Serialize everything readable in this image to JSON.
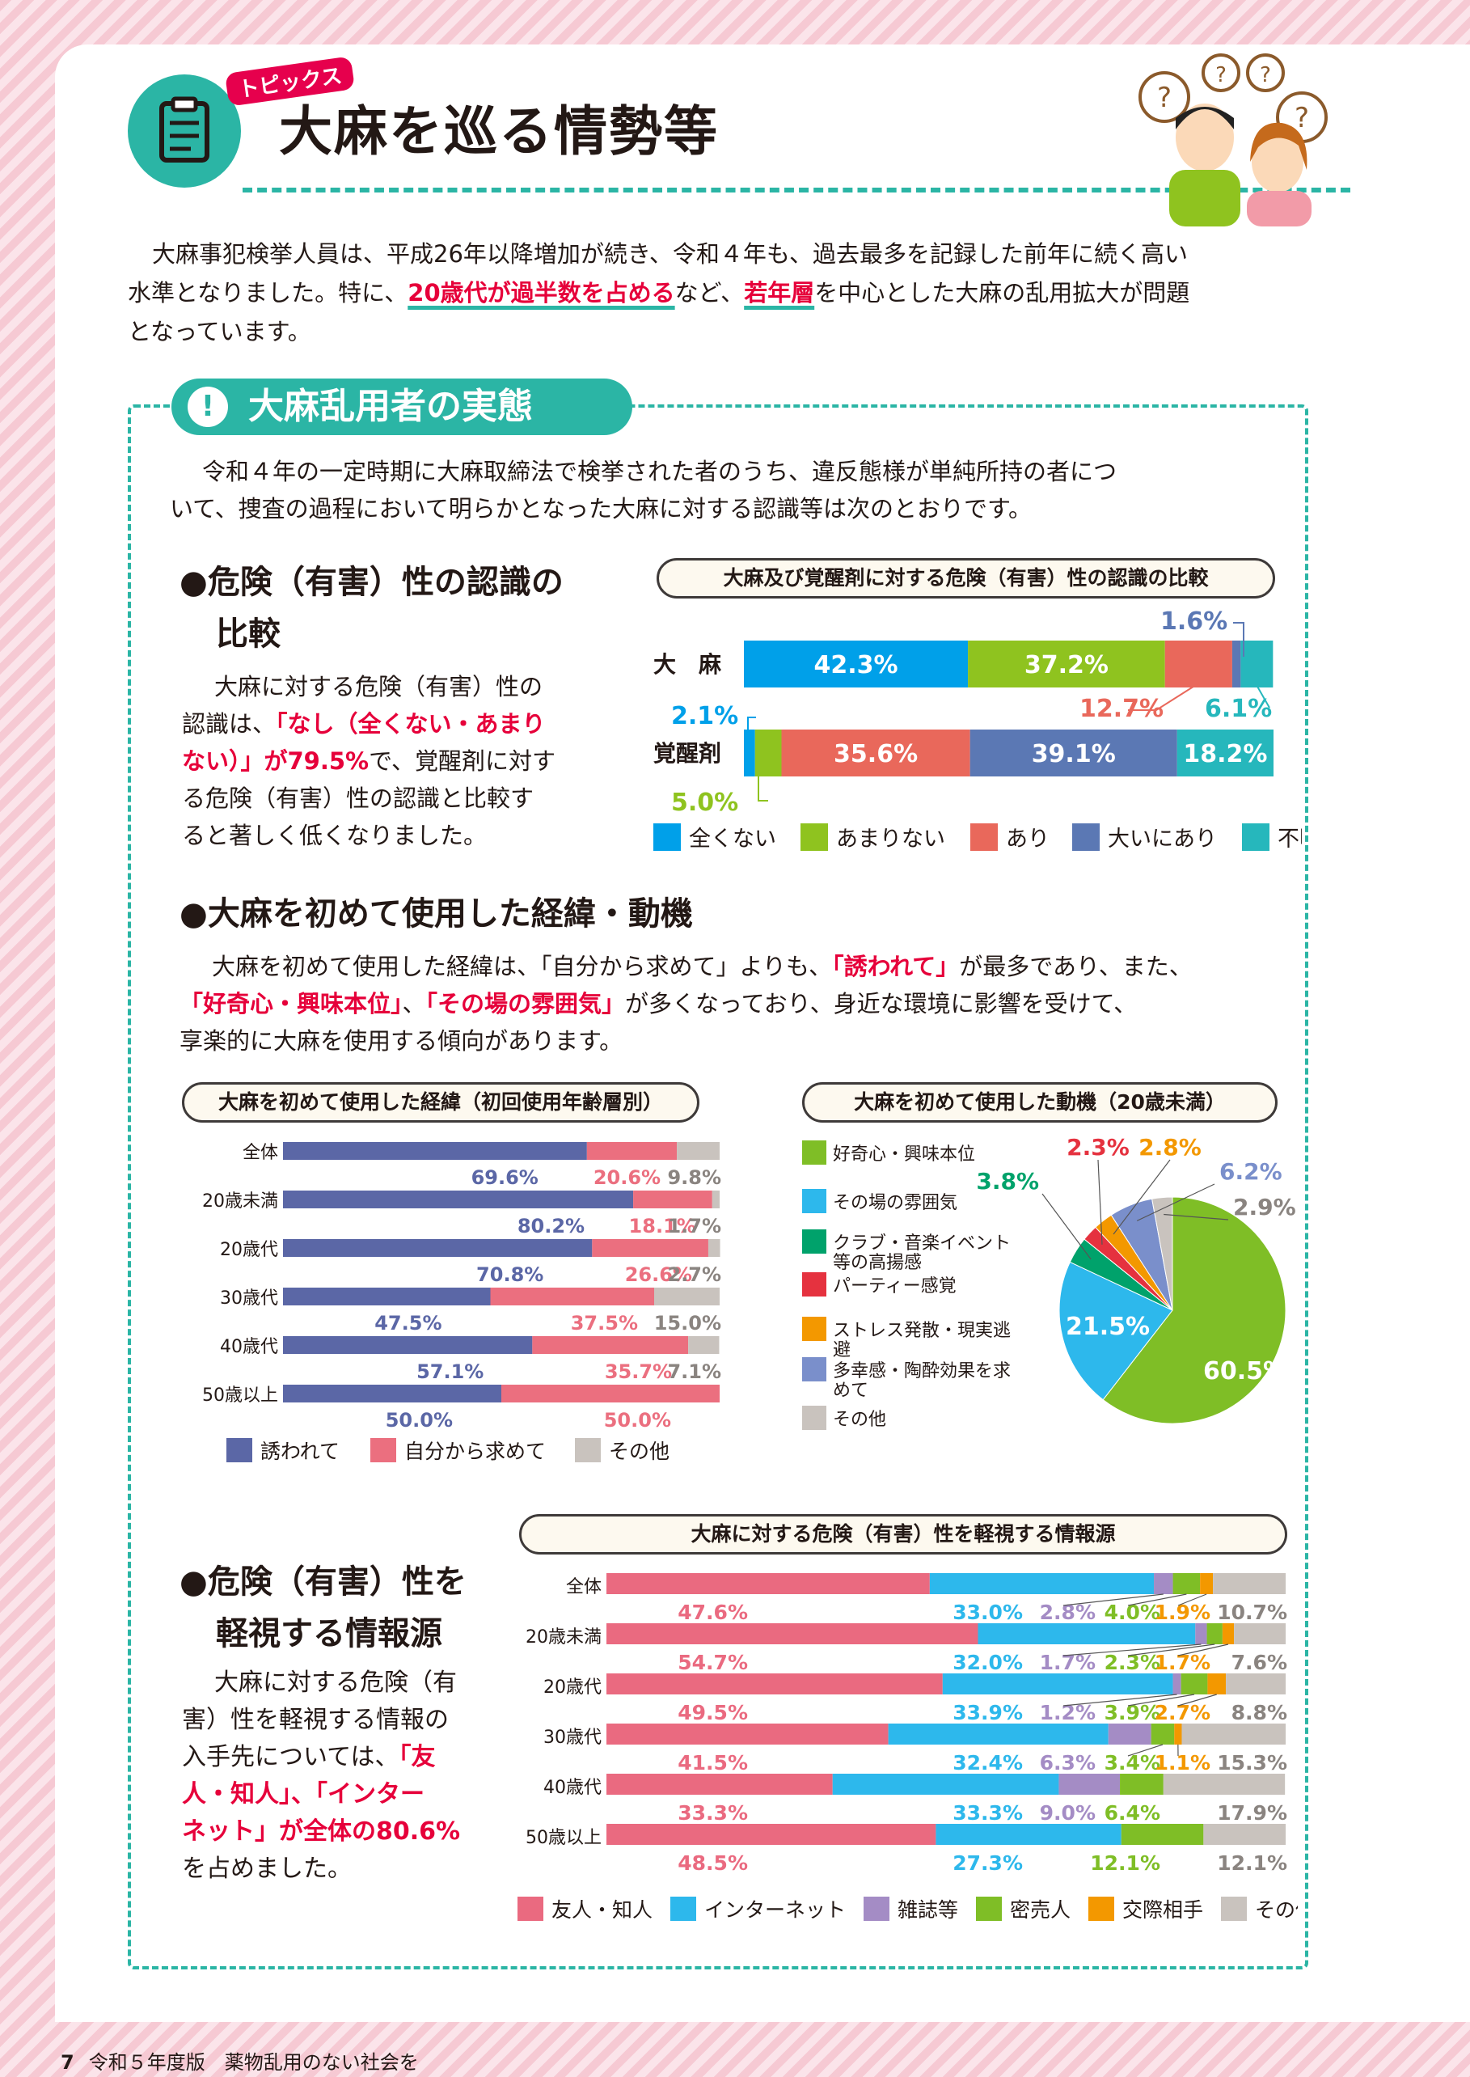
{
  "header": {
    "badge": "トピックス",
    "title": "大麻を巡る情勢等"
  },
  "intro": {
    "p1": "大麻事犯検挙人員は、平成26年以降増加が続き、令和４年も、過去最多を記録した前年に続く高い",
    "p2a": "水準となりました。特に、",
    "p2b": "20歳代が過半数を占める",
    "p2c": "など、",
    "p2d": "若年層",
    "p2e": "を中心とした大麻の乱用拡大が問題",
    "p3": "となっています。"
  },
  "section": {
    "title": "大麻乱用者の実態",
    "intro1": "令和４年の一定時期に大麻取締法で検挙された者のうち、違反態様が単純所持の者につ",
    "intro2": "いて、捜査の過程において明らかとなった大麻に対する認識等は次のとおりです。"
  },
  "risk": {
    "heading1": "●危険（有害）性の認識の",
    "heading2": "比較",
    "t1": "大麻に対する危険（有害）性の",
    "t2a": "認識は、",
    "t2b": "「なし（全くない・あまり",
    "t3a": "ない）」が79.5%",
    "t3b": "で、覚醒剤に対す",
    "t4": "る危険（有害）性の認識と比較す",
    "t5": "ると著しく低くなりました。"
  },
  "motive": {
    "heading": "●大麻を初めて使用した経緯・動機",
    "t1a": "大麻を初めて使用した経緯は、「自分から求めて」よりも、",
    "t1b": "「誘われて」",
    "t1c": "が最多であり、また、",
    "t2a": "「好奇心・興味本位」",
    "t2b": "、",
    "t2c": "「その場の雰囲気」",
    "t2d": "が多くなっており、身近な環境に影響を受けて、",
    "t3": "享楽的に大麻を使用する傾向があります。"
  },
  "info": {
    "heading1": "●危険（有害）性を",
    "heading2": "軽視する情報源",
    "t1": "大麻に対する危険（有",
    "t2": "害）性を軽視する情報の",
    "t3a": "入手先については、",
    "t3b": "「友",
    "t4": "人・知人」、「インター",
    "t5a": "ネット」が全体の80.6%",
    "t6": "を占めました。"
  },
  "footer": {
    "page": "7",
    "text": "令和５年度版　薬物乱用のない社会を"
  },
  "chart_data": [
    {
      "type": "bar",
      "stacked": true,
      "orientation": "horizontal",
      "title": "大麻及び覚醒剤に対する危険（有害）性の認識の比較",
      "categories": [
        "大　麻",
        "覚醒剤"
      ],
      "series": [
        {
          "name": "全くない",
          "values": [
            42.3,
            2.1
          ],
          "color": "#00a0e9"
        },
        {
          "name": "あまりない",
          "values": [
            37.2,
            5.0
          ],
          "color": "#8fc31f"
        },
        {
          "name": "あり",
          "values": [
            12.7,
            35.6
          ],
          "color": "#e9685b"
        },
        {
          "name": "大いにあり",
          "values": [
            1.6,
            39.1
          ],
          "color": "#5b78b4"
        },
        {
          "name": "不明",
          "values": [
            6.1,
            18.2
          ],
          "color": "#26b7bc"
        }
      ],
      "labels": [
        [
          "42.3%",
          "37.2%",
          "12.7%",
          "1.6%",
          "6.1%"
        ],
        [
          "2.1%",
          "5.0%",
          "35.6%",
          "39.1%",
          "18.2%"
        ]
      ]
    },
    {
      "type": "bar",
      "stacked": true,
      "orientation": "horizontal",
      "title": "大麻を初めて使用した経緯（初回使用年齢層別）",
      "categories": [
        "全体",
        "20歳未満",
        "20歳代",
        "30歳代",
        "40歳代",
        "50歳以上"
      ],
      "series": [
        {
          "name": "誘われて",
          "values": [
            69.6,
            80.2,
            70.8,
            47.5,
            57.1,
            50.0
          ],
          "color": "#5b67a6"
        },
        {
          "name": "自分から求めて",
          "values": [
            20.6,
            18.1,
            26.6,
            37.5,
            35.7,
            50.0
          ],
          "color": "#eb6f7f"
        },
        {
          "name": "その他",
          "values": [
            9.8,
            1.7,
            2.7,
            15.0,
            7.1,
            0
          ],
          "color": "#c9c3be"
        }
      ],
      "labels": [
        [
          "69.6%",
          "20.6%",
          "9.8%"
        ],
        [
          "80.2%",
          "18.1%",
          "1.7%"
        ],
        [
          "70.8%",
          "26.6%",
          "2.7%"
        ],
        [
          "47.5%",
          "37.5%",
          "15.0%"
        ],
        [
          "57.1%",
          "35.7%",
          "7.1%"
        ],
        [
          "50.0%",
          "50.0%",
          ""
        ]
      ]
    },
    {
      "type": "pie",
      "title": "大麻を初めて使用した動機（20歳未満）",
      "slices": [
        {
          "name": "好奇心・興味本位",
          "value": 60.5,
          "label": "60.5%",
          "color": "#7fbe26"
        },
        {
          "name": "その場の雰囲気",
          "value": 21.5,
          "label": "21.5%",
          "color": "#2db8ec"
        },
        {
          "name": "クラブ・音楽イベント等の高揚感",
          "value": 3.8,
          "label": "3.8%",
          "color": "#00a26b"
        },
        {
          "name": "パーティー感覚",
          "value": 2.3,
          "label": "2.3%",
          "color": "#e5323f"
        },
        {
          "name": "ストレス発散・現実逃避",
          "value": 2.8,
          "label": "2.8%",
          "color": "#f39800"
        },
        {
          "name": "多幸感・陶酔効果を求めて",
          "value": 6.2,
          "label": "6.2%",
          "color": "#7a8fcb"
        },
        {
          "name": "その他",
          "value": 2.9,
          "label": "2.9%",
          "color": "#c9c3be"
        }
      ]
    },
    {
      "type": "bar",
      "stacked": true,
      "orientation": "horizontal",
      "title": "大麻に対する危険（有害）性を軽視する情報源",
      "categories": [
        "全体",
        "20歳未満",
        "20歳代",
        "30歳代",
        "40歳代",
        "50歳以上"
      ],
      "series": [
        {
          "name": "友人・知人",
          "values": [
            47.6,
            54.7,
            49.5,
            41.5,
            33.3,
            48.5
          ],
          "color": "#ea6a80"
        },
        {
          "name": "インターネット",
          "values": [
            33.0,
            32.0,
            33.9,
            32.4,
            33.3,
            27.3
          ],
          "color": "#2db8ec"
        },
        {
          "name": "雑誌等",
          "values": [
            2.8,
            1.7,
            1.2,
            6.3,
            9.0,
            0
          ],
          "color": "#a48cc5"
        },
        {
          "name": "密売人",
          "values": [
            4.0,
            2.3,
            3.9,
            3.4,
            6.4,
            12.1
          ],
          "color": "#7fbe26"
        },
        {
          "name": "交際相手",
          "values": [
            1.9,
            1.7,
            2.7,
            1.1,
            0,
            0
          ],
          "color": "#f39800"
        },
        {
          "name": "その他",
          "values": [
            10.7,
            7.6,
            8.8,
            15.3,
            17.9,
            12.1
          ],
          "color": "#c9c3be"
        }
      ],
      "labels": [
        [
          "47.6%",
          "33.0%",
          "2.8%",
          "4.0%",
          "1.9%",
          "10.7%"
        ],
        [
          "54.7%",
          "32.0%",
          "1.7%",
          "2.3%",
          "1.7%",
          "7.6%"
        ],
        [
          "49.5%",
          "33.9%",
          "1.2%",
          "3.9%",
          "2.7%",
          "8.8%"
        ],
        [
          "41.5%",
          "32.4%",
          "6.3%",
          "3.4%",
          "1.1%",
          "15.3%"
        ],
        [
          "33.3%",
          "33.3%",
          "9.0%",
          "6.4%",
          "",
          "17.9%"
        ],
        [
          "48.5%",
          "27.3%",
          "",
          "12.1%",
          "",
          "12.1%"
        ]
      ]
    }
  ]
}
